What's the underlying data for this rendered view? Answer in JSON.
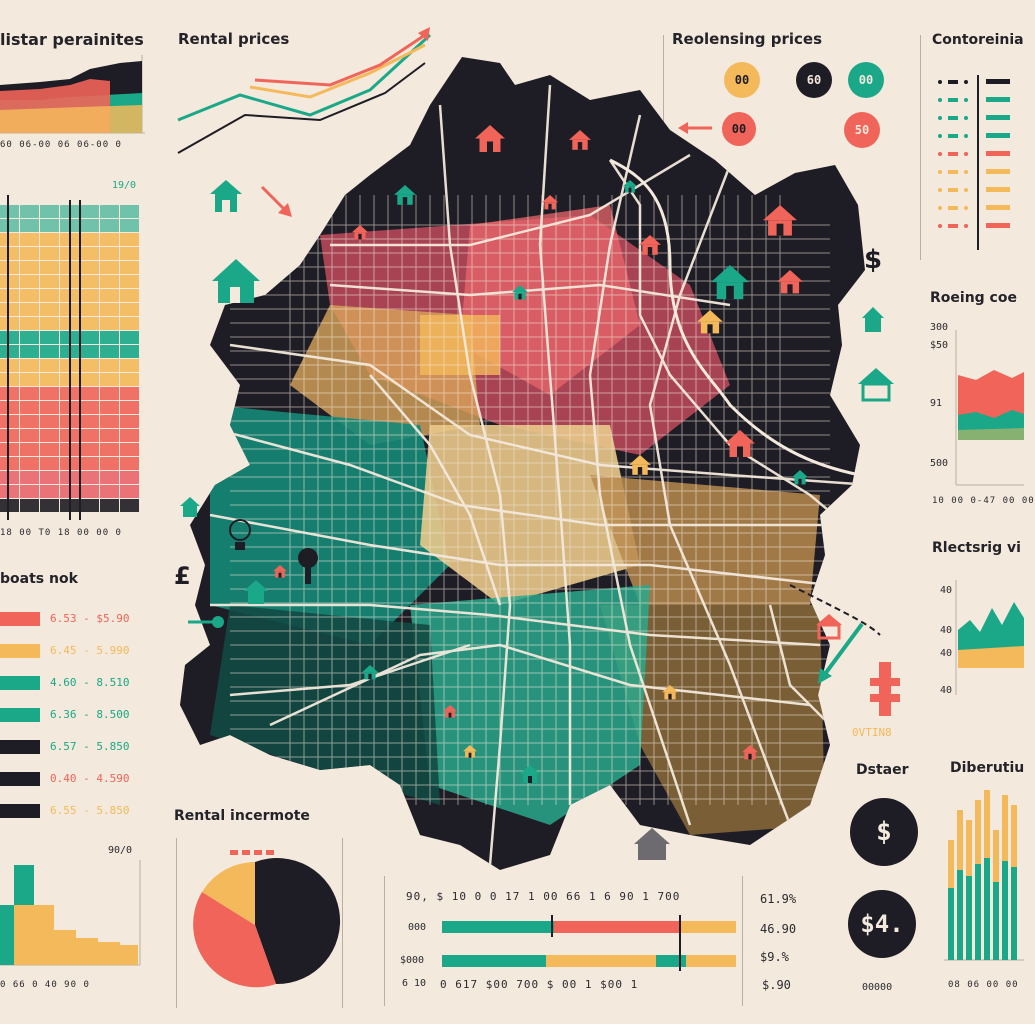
{
  "colors": {
    "background": "#f3e9dc",
    "dark": "#1e1c24",
    "teal": "#1aa889",
    "salmon": "#f06459",
    "yellow": "#f4b95a",
    "pink": "#e8666a"
  },
  "left": {
    "title_top": "listar perainites",
    "top_ticks": "60 06-00 06 06-00 0",
    "heat_value": "19/0",
    "heat_ticks": "18 00 T0 18 00 00 0",
    "legend_title": "boats nok",
    "ranges": [
      "6.53 - $5.90",
      "6.45 - 5.990",
      "4.60 - 8.510",
      "6.36 - 8.500",
      "6.57 - 5.850",
      "0.40 - 4.590",
      "6.55 - 5.850"
    ],
    "bottom_value": "90/0",
    "bottom_ticks": "0 66 0 40 90 0"
  },
  "top_center": {
    "title": "Rental prices"
  },
  "right_center": {
    "title": "Reolensing prices",
    "badges": [
      "00",
      "60",
      "00",
      "00",
      "50"
    ]
  },
  "right": {
    "title_top": "Contoreinia",
    "title_mid": "Roeing coe",
    "mid_ticks": [
      "300",
      "$50",
      "91",
      "500"
    ],
    "mid_axis": "10 00 0-47 00 00",
    "title_low": "Rlectsrig vi",
    "low_ticks": [
      "40",
      "40",
      "40",
      "40"
    ],
    "title_bottom": "Diberutiu",
    "bottom_axis": "08 06 00 00"
  },
  "pie": {
    "title": "Rental incermote"
  },
  "bars": {
    "top_ticks": "90,  $ 10  0 0 17  1 00  66  1 6 90  1 700",
    "row_labels": [
      "000",
      "$000",
      "6 10"
    ],
    "bottom_ticks": "0  617  $00  700  $  00  1  $00  1",
    "values": [
      "61.9%",
      "46.90",
      "$9.%",
      "$.90"
    ]
  },
  "distance": {
    "title": "Dstaer",
    "c1": "$",
    "c2": "$4.",
    "footer": "00000"
  },
  "hydrant_label": "0VTIN8"
}
